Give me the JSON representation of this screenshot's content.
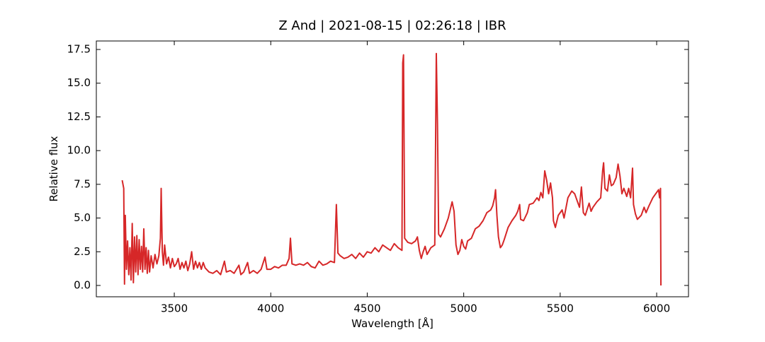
{
  "chart_data": {
    "type": "line",
    "title": "Z And | 2021-08-15 | 02:26:18 | IBR",
    "xlabel": "Wavelength [Å]",
    "ylabel": "Relative flux",
    "xlim": [
      3096,
      6165
    ],
    "ylim": [
      -0.84,
      18.13
    ],
    "xticks": [
      3500,
      4000,
      4500,
      5000,
      5500,
      6000
    ],
    "yticks": [
      {
        "value": 0,
        "label": "0.0"
      },
      2.5,
      {
        "value": 5,
        "label": "5.0"
      },
      7.5,
      {
        "value": 10,
        "label": "10.0"
      },
      12.5,
      {
        "value": 15,
        "label": "15.0"
      },
      17.5
    ],
    "tick_direction": "in",
    "grid": false,
    "series": [
      {
        "color": "#d62728",
        "x": [
          3230,
          3238,
          3242,
          3246,
          3252,
          3258,
          3264,
          3270,
          3276,
          3282,
          3288,
          3294,
          3300,
          3306,
          3312,
          3318,
          3324,
          3330,
          3336,
          3342,
          3348,
          3354,
          3360,
          3366,
          3372,
          3380,
          3390,
          3400,
          3410,
          3420,
          3428,
          3432,
          3438,
          3444,
          3450,
          3460,
          3470,
          3480,
          3490,
          3500,
          3510,
          3520,
          3530,
          3540,
          3550,
          3560,
          3570,
          3580,
          3590,
          3600,
          3610,
          3620,
          3630,
          3640,
          3650,
          3660,
          3680,
          3700,
          3720,
          3740,
          3760,
          3770,
          3790,
          3810,
          3835,
          3845,
          3860,
          3880,
          3890,
          3910,
          3930,
          3950,
          3970,
          3980,
          4000,
          4020,
          4040,
          4060,
          4080,
          4095,
          4102,
          4110,
          4130,
          4150,
          4170,
          4190,
          4210,
          4230,
          4250,
          4270,
          4290,
          4310,
          4330,
          4340,
          4348,
          4360,
          4380,
          4400,
          4420,
          4440,
          4460,
          4480,
          4500,
          4520,
          4540,
          4560,
          4580,
          4600,
          4620,
          4640,
          4660,
          4680,
          4684,
          4688,
          4694,
          4710,
          4730,
          4750,
          4760,
          4770,
          4780,
          4790,
          4800,
          4810,
          4830,
          4850,
          4858,
          4864,
          4870,
          4880,
          4900,
          4920,
          4940,
          4950,
          4960,
          4970,
          4980,
          4990,
          5000,
          5010,
          5020,
          5040,
          5060,
          5080,
          5100,
          5120,
          5140,
          5150,
          5160,
          5165,
          5172,
          5180,
          5190,
          5200,
          5210,
          5230,
          5250,
          5270,
          5280,
          5290,
          5295,
          5310,
          5330,
          5340,
          5360,
          5380,
          5390,
          5400,
          5410,
          5420,
          5430,
          5440,
          5450,
          5460,
          5465,
          5475,
          5490,
          5510,
          5520,
          5540,
          5560,
          5575,
          5590,
          5600,
          5610,
          5620,
          5630,
          5650,
          5660,
          5670,
          5690,
          5710,
          5720,
          5725,
          5732,
          5745,
          5755,
          5765,
          5775,
          5790,
          5800,
          5810,
          5820,
          5830,
          5845,
          5855,
          5865,
          5875,
          5880,
          5890,
          5900,
          5920,
          5935,
          5945,
          5960,
          5980,
          6000,
          6010,
          6015,
          6020,
          6022
        ],
        "values": [
          7.8,
          7.2,
          0.1,
          5.2,
          1.2,
          3.3,
          0.8,
          2.8,
          0.4,
          4.6,
          0.2,
          3.6,
          1.0,
          3.7,
          0.8,
          3.4,
          1.2,
          2.9,
          1.0,
          4.2,
          1.2,
          2.8,
          0.9,
          2.6,
          1.0,
          2.2,
          1.3,
          2.3,
          1.6,
          2.2,
          3.5,
          7.2,
          2.5,
          1.5,
          3.0,
          1.6,
          2.1,
          1.3,
          2.0,
          1.4,
          1.6,
          2.0,
          1.2,
          1.7,
          1.3,
          1.8,
          1.1,
          1.6,
          2.5,
          1.2,
          1.8,
          1.3,
          1.7,
          1.2,
          1.7,
          1.3,
          1.0,
          0.9,
          1.1,
          0.8,
          1.8,
          1.0,
          1.1,
          0.9,
          1.5,
          0.8,
          1.0,
          1.7,
          0.9,
          1.1,
          0.9,
          1.2,
          2.1,
          1.2,
          1.2,
          1.4,
          1.3,
          1.5,
          1.5,
          2.0,
          3.5,
          1.6,
          1.5,
          1.6,
          1.5,
          1.7,
          1.4,
          1.3,
          1.8,
          1.5,
          1.6,
          1.8,
          1.7,
          6.0,
          2.4,
          2.2,
          2.0,
          2.1,
          2.3,
          2.0,
          2.4,
          2.1,
          2.5,
          2.4,
          2.8,
          2.5,
          3.0,
          2.8,
          2.6,
          3.1,
          2.8,
          2.6,
          16.5,
          17.1,
          3.5,
          3.2,
          3.1,
          3.3,
          3.6,
          2.6,
          2.0,
          2.5,
          2.9,
          2.3,
          2.8,
          3.0,
          17.2,
          12,
          3.8,
          3.6,
          4.2,
          5.0,
          6.2,
          5.5,
          3.0,
          2.3,
          2.6,
          3.4,
          2.9,
          2.7,
          3.3,
          3.5,
          4.2,
          4.4,
          4.8,
          5.4,
          5.6,
          5.9,
          6.5,
          7.1,
          5.2,
          3.6,
          2.8,
          3.0,
          3.4,
          4.3,
          4.8,
          5.2,
          5.5,
          6.0,
          4.9,
          4.8,
          5.4,
          6.0,
          6.1,
          6.5,
          6.3,
          6.9,
          6.5,
          8.5,
          7.8,
          6.8,
          7.6,
          6.5,
          4.8,
          4.3,
          5.2,
          5.6,
          5.0,
          6.5,
          7.0,
          6.8,
          6.2,
          5.8,
          7.3,
          5.4,
          5.2,
          6.1,
          5.5,
          5.8,
          6.2,
          6.5,
          8.5,
          9.1,
          7.2,
          7.0,
          8.2,
          7.4,
          7.5,
          8.0,
          9.0,
          8.1,
          6.8,
          7.2,
          6.6,
          7.2,
          6.5,
          8.7,
          6.0,
          5.3,
          4.9,
          5.2,
          5.8,
          5.4,
          5.9,
          6.5,
          6.9,
          7.1,
          6.5,
          7.2,
          0.0
        ]
      }
    ]
  }
}
